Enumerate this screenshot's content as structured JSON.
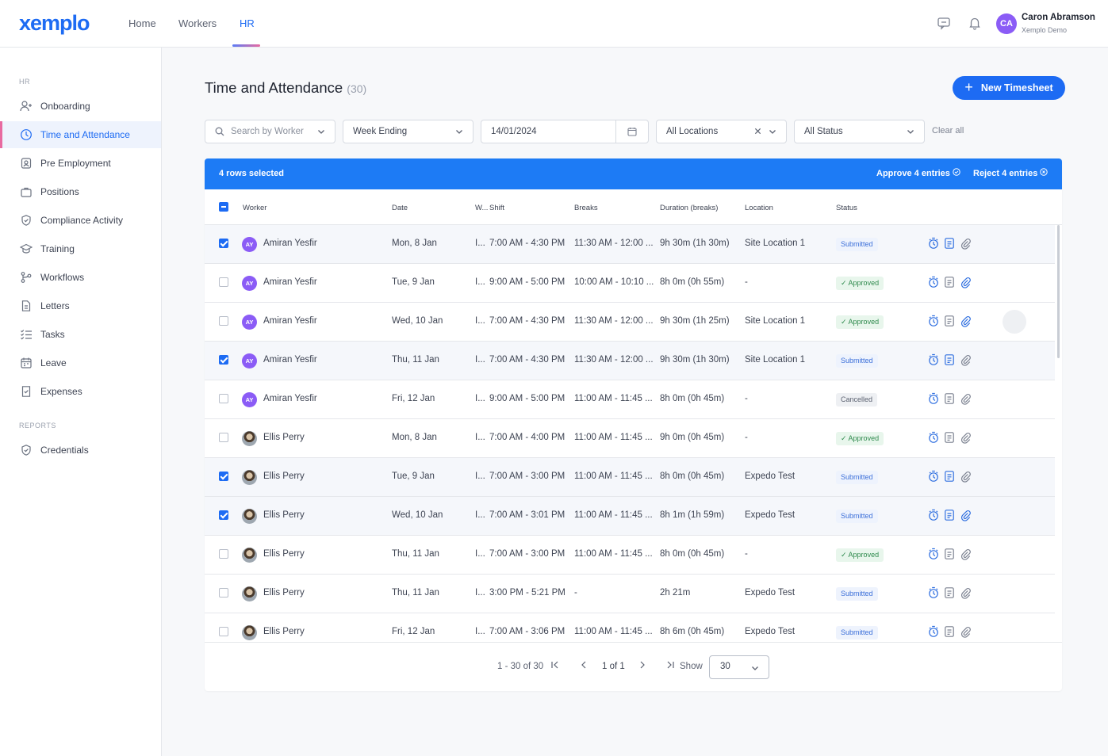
{
  "app": {
    "logo": "xemplo"
  },
  "nav": {
    "home": "Home",
    "workers": "Workers",
    "hr": "HR"
  },
  "user": {
    "initials": "CA",
    "name": "Caron Abramson",
    "org": "Xemplo Demo"
  },
  "sidebar": {
    "section_hr": "HR",
    "section_reports": "REPORTS",
    "items": [
      {
        "label": "Onboarding",
        "icon": "user-plus-icon"
      },
      {
        "label": "Time and Attendance",
        "icon": "clock-icon"
      },
      {
        "label": "Pre Employment",
        "icon": "id-badge-icon"
      },
      {
        "label": "Positions",
        "icon": "briefcase-icon"
      },
      {
        "label": "Compliance Activity",
        "icon": "shield-check-icon"
      },
      {
        "label": "Training",
        "icon": "graduation-cap-icon"
      },
      {
        "label": "Workflows",
        "icon": "workflow-icon"
      },
      {
        "label": "Letters",
        "icon": "document-icon"
      },
      {
        "label": "Tasks",
        "icon": "checklist-icon"
      },
      {
        "label": "Leave",
        "icon": "calendar-icon"
      },
      {
        "label": "Expenses",
        "icon": "receipt-icon"
      }
    ],
    "report_items": [
      {
        "label": "Credentials",
        "icon": "badge-check-icon"
      }
    ]
  },
  "page": {
    "title": "Time and Attendance",
    "count": "(30)",
    "new_button": "New Timesheet"
  },
  "filters": {
    "search_placeholder": "Search by Worker",
    "week_ending": "Week Ending",
    "date": "14/01/2024",
    "locations": "All Locations",
    "status": "All Status",
    "clear_all": "Clear all"
  },
  "selection": {
    "count_label": "4 rows selected",
    "approve": "Approve 4 entries",
    "reject": "Reject 4 entries"
  },
  "table": {
    "headers": {
      "worker": "Worker",
      "date": "Date",
      "w": "W...",
      "shift": "Shift",
      "breaks": "Breaks",
      "duration": "Duration (breaks)",
      "location": "Location",
      "status": "Status"
    },
    "rows": [
      {
        "selected": true,
        "initials": "AY",
        "worker": "Amiran Yesfir",
        "date": "Mon, 8 Jan",
        "w": "I...",
        "shift": "7:00 AM - 4:30 PM",
        "breaks": "11:30 AM - 12:00 ...",
        "duration": "9h 30m (1h 30m)",
        "location": "Site Location 1",
        "status": "Submitted"
      },
      {
        "selected": false,
        "initials": "AY",
        "worker": "Amiran Yesfir",
        "date": "Tue, 9 Jan",
        "w": "I...",
        "shift": "9:00 AM - 5:00 PM",
        "breaks": "10:00 AM - 10:10 ...",
        "duration": "8h 0m (0h 55m)",
        "location": "-",
        "status": "Approved"
      },
      {
        "selected": false,
        "initials": "AY",
        "worker": "Amiran Yesfir",
        "date": "Wed, 10 Jan",
        "w": "I...",
        "shift": "7:00 AM - 4:30 PM",
        "breaks": "11:30 AM - 12:00 ...",
        "duration": "9h 30m (1h 25m)",
        "location": "Site Location 1",
        "status": "Approved"
      },
      {
        "selected": true,
        "initials": "AY",
        "worker": "Amiran Yesfir",
        "date": "Thu, 11 Jan",
        "w": "I...",
        "shift": "7:00 AM - 4:30 PM",
        "breaks": "11:30 AM - 12:00 ...",
        "duration": "9h 30m (1h 30m)",
        "location": "Site Location 1",
        "status": "Submitted"
      },
      {
        "selected": false,
        "initials": "AY",
        "worker": "Amiran Yesfir",
        "date": "Fri, 12 Jan",
        "w": "I...",
        "shift": "9:00 AM - 5:00 PM",
        "breaks": "11:00 AM - 11:45 ...",
        "duration": "8h 0m (0h 45m)",
        "location": "-",
        "status": "Cancelled"
      },
      {
        "selected": false,
        "initials": "",
        "worker": "Ellis Perry",
        "date": "Mon, 8 Jan",
        "w": "I...",
        "shift": "7:00 AM - 4:00 PM",
        "breaks": "11:00 AM - 11:45 ...",
        "duration": "9h 0m (0h 45m)",
        "location": "-",
        "status": "Approved"
      },
      {
        "selected": true,
        "initials": "",
        "worker": "Ellis Perry",
        "date": "Tue, 9 Jan",
        "w": "I...",
        "shift": "7:00 AM - 3:00 PM",
        "breaks": "11:00 AM - 11:45 ...",
        "duration": "8h 0m (0h 45m)",
        "location": "Expedo Test",
        "status": "Submitted"
      },
      {
        "selected": true,
        "initials": "",
        "worker": "Ellis Perry",
        "date": "Wed, 10 Jan",
        "w": "I...",
        "shift": "7:00 AM - 3:01 PM",
        "breaks": "11:00 AM - 11:45 ...",
        "duration": "8h 1m (1h 59m)",
        "location": "Expedo Test",
        "status": "Submitted"
      },
      {
        "selected": false,
        "initials": "",
        "worker": "Ellis Perry",
        "date": "Thu, 11 Jan",
        "w": "I...",
        "shift": "7:00 AM - 3:00 PM",
        "breaks": "11:00 AM - 11:45 ...",
        "duration": "8h 0m (0h 45m)",
        "location": "-",
        "status": "Approved"
      },
      {
        "selected": false,
        "initials": "",
        "worker": "Ellis Perry",
        "date": "Thu, 11 Jan",
        "w": "I...",
        "shift": "3:00 PM - 5:21 PM",
        "breaks": "-",
        "duration": "2h 21m",
        "location": "Expedo Test",
        "status": "Submitted"
      },
      {
        "selected": false,
        "initials": "",
        "worker": "Ellis Perry",
        "date": "Fri, 12 Jan",
        "w": "I...",
        "shift": "7:00 AM - 3:06 PM",
        "breaks": "11:00 AM - 11:45 ...",
        "duration": "8h 6m (0h 45m)",
        "location": "Expedo Test",
        "status": "Submitted"
      }
    ]
  },
  "pagination": {
    "range": "1 - 30 of 30",
    "page": "1 of 1",
    "show_label": "Show",
    "page_size": "30"
  },
  "colors": {
    "accent": "#1d6bf3",
    "selection_bar": "#1d7bf5",
    "approved": "#2f8a4d",
    "submitted": "#3b6fd9"
  }
}
